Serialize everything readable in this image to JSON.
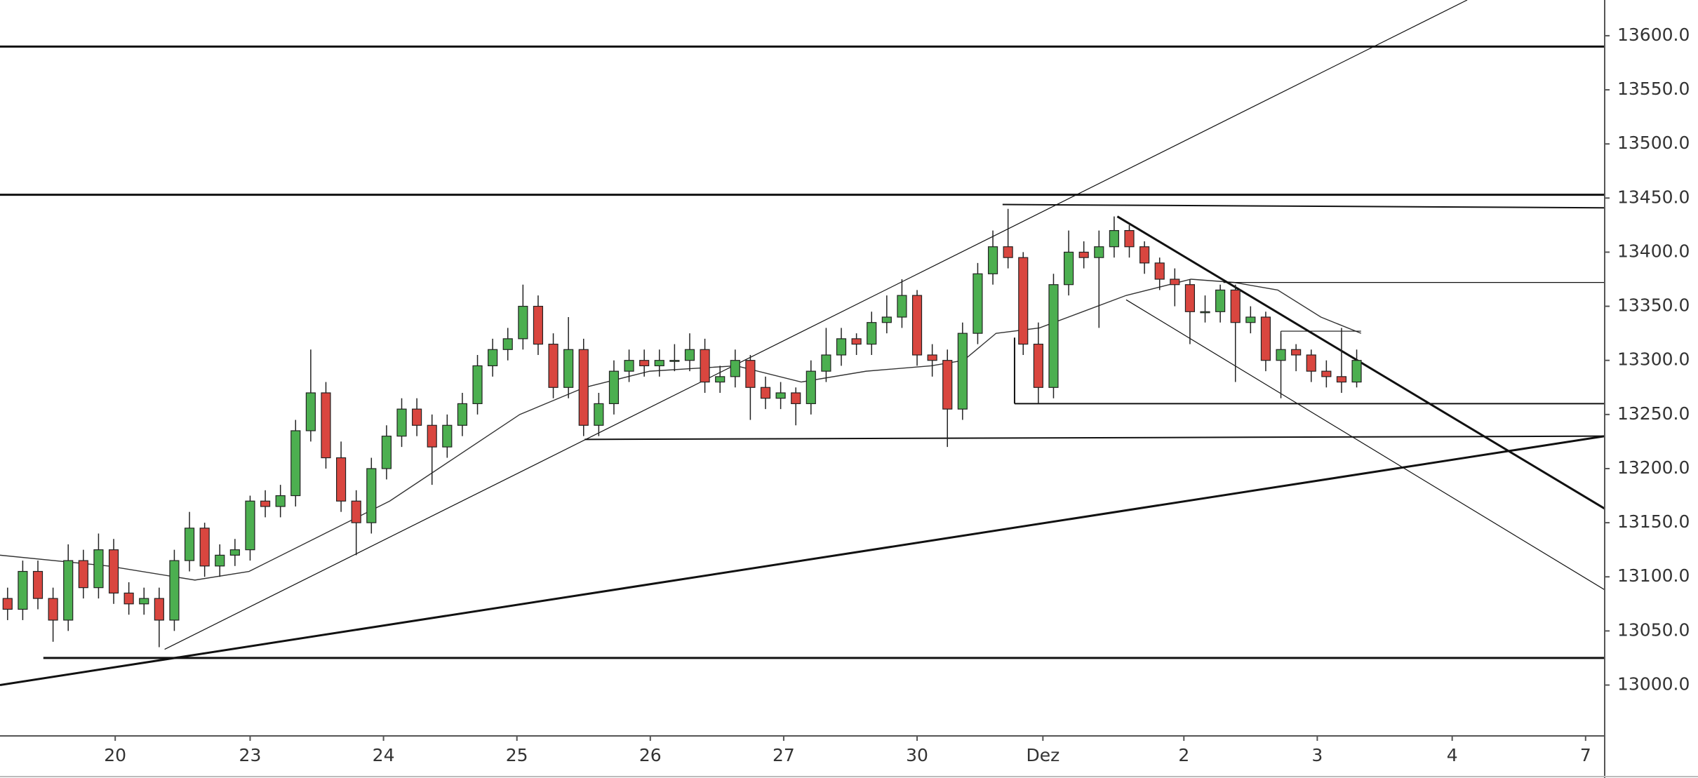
{
  "chart_data": {
    "type": "candlestick",
    "x": [
      0.5,
      1.5,
      2.5,
      3.5,
      4.5,
      5.5,
      6.5,
      7.5,
      8.5,
      9.5,
      10.5,
      11.5,
      12.5,
      13.5,
      14.5,
      15.5,
      16.5,
      17.5,
      18.5,
      19.5,
      20.5,
      21.5,
      22.5,
      23.5,
      24.5,
      25.5,
      26.5,
      27.5,
      28.5,
      29.5,
      30.5,
      31.5,
      32.5,
      33.5,
      34.5,
      35.5,
      36.5,
      37.5,
      38.5,
      39.5,
      40.5,
      41.5,
      42.5,
      43.5,
      44.5,
      45.5,
      46.5,
      47.5,
      48.5,
      49.5,
      50.5,
      51.5,
      52.5,
      53.5,
      54.5,
      55.5,
      56.5,
      57.5,
      58.5,
      59.5,
      60.5,
      61.5,
      62.5,
      63.5,
      64.5,
      65.5,
      66.5,
      67.5,
      68.5,
      69.5,
      70.5,
      71.5,
      72.5,
      73.5,
      74.5,
      75.5,
      76.5,
      77.5,
      78.5,
      79.5,
      80.5,
      81.5,
      82.5,
      83.5,
      84.5,
      85.5,
      86.5,
      87.5,
      88.5,
      89.5
    ],
    "open": [
      13080,
      13070,
      13105,
      13080,
      13060,
      13115,
      13090,
      13125,
      13085,
      13075,
      13080,
      13060,
      13115,
      13145,
      13110,
      13120,
      13125,
      13170,
      13165,
      13175,
      13235,
      13270,
      13210,
      13170,
      13150,
      13200,
      13230,
      13255,
      13240,
      13220,
      13240,
      13260,
      13295,
      13310,
      13320,
      13350,
      13315,
      13275,
      13310,
      13240,
      13260,
      13290,
      13300,
      13295,
      13300,
      13300,
      13310,
      13280,
      13285,
      13300,
      13275,
      13265,
      13270,
      13260,
      13290,
      13305,
      13320,
      13315,
      13335,
      13340,
      13360,
      13305,
      13300,
      13255,
      13325,
      13380,
      13405,
      13395,
      13315,
      13275,
      13370,
      13400,
      13395,
      13405,
      13420,
      13405,
      13390,
      13375,
      13370,
      13345,
      13345,
      13365,
      13335,
      13340,
      13300,
      13310,
      13305,
      13290,
      13285,
      13280
    ],
    "high": [
      13090,
      13115,
      13115,
      13090,
      13130,
      13125,
      13140,
      13135,
      13095,
      13090,
      13090,
      13125,
      13160,
      13150,
      13130,
      13135,
      13175,
      13180,
      13185,
      13245,
      13310,
      13280,
      13225,
      13180,
      13210,
      13240,
      13265,
      13265,
      13250,
      13250,
      13270,
      13305,
      13320,
      13330,
      13370,
      13360,
      13325,
      13340,
      13320,
      13270,
      13300,
      13310,
      13310,
      13310,
      13315,
      13325,
      13320,
      13295,
      13310,
      13305,
      13285,
      13280,
      13275,
      13300,
      13330,
      13330,
      13325,
      13345,
      13360,
      13375,
      13365,
      13315,
      13310,
      13335,
      13390,
      13420,
      13440,
      13400,
      13335,
      13380,
      13420,
      13410,
      13420,
      13433,
      13425,
      13410,
      13395,
      13385,
      13375,
      13360,
      13370,
      13370,
      13350,
      13345,
      13325,
      13315,
      13310,
      13300,
      13330,
      13310
    ],
    "low": [
      13060,
      13060,
      13070,
      13040,
      13050,
      13080,
      13080,
      13075,
      13065,
      13065,
      13035,
      13050,
      13105,
      13100,
      13100,
      13110,
      13115,
      13155,
      13155,
      13165,
      13225,
      13200,
      13160,
      13120,
      13140,
      13190,
      13220,
      13230,
      13185,
      13210,
      13230,
      13250,
      13285,
      13300,
      13310,
      13305,
      13265,
      13265,
      13230,
      13230,
      13250,
      13280,
      13285,
      13285,
      13290,
      13290,
      13270,
      13270,
      13275,
      13245,
      13255,
      13255,
      13240,
      13250,
      13280,
      13295,
      13305,
      13305,
      13325,
      13330,
      13295,
      13285,
      13220,
      13245,
      13315,
      13370,
      13385,
      13305,
      13260,
      13265,
      13360,
      13385,
      13330,
      13395,
      13395,
      13380,
      13365,
      13350,
      13315,
      13335,
      13335,
      13280,
      13325,
      13290,
      13265,
      13290,
      13280,
      13275,
      13270,
      13275
    ],
    "close": [
      13070,
      13105,
      13080,
      13060,
      13115,
      13090,
      13125,
      13085,
      13075,
      13080,
      13060,
      13115,
      13145,
      13110,
      13120,
      13125,
      13170,
      13165,
      13175,
      13235,
      13270,
      13210,
      13170,
      13150,
      13200,
      13230,
      13255,
      13240,
      13220,
      13240,
      13260,
      13295,
      13310,
      13320,
      13350,
      13315,
      13275,
      13310,
      13240,
      13260,
      13290,
      13300,
      13295,
      13300,
      13300,
      13310,
      13280,
      13285,
      13300,
      13275,
      13265,
      13270,
      13260,
      13290,
      13305,
      13320,
      13315,
      13335,
      13340,
      13360,
      13305,
      13300,
      13255,
      13325,
      13380,
      13405,
      13395,
      13315,
      13275,
      13370,
      13400,
      13395,
      13405,
      13420,
      13405,
      13390,
      13375,
      13370,
      13345,
      13345,
      13365,
      13335,
      13340,
      13300,
      13310,
      13305,
      13290,
      13285,
      13280,
      13300
    ],
    "up_color": "#4caf50",
    "down_color": "#d9463f",
    "moving_average": {
      "color": "#333333",
      "x": [
        0,
        7.14,
        12.86,
        16.43,
        21.43,
        25.71,
        30,
        34.29,
        38.57,
        42.86,
        48.57,
        52.86,
        57.14,
        61.43,
        63.57,
        65.71,
        68.57,
        71.43,
        74.29,
        77.14,
        78.57,
        81.43,
        84.29,
        87.14,
        89.79
      ],
      "values": [
        13120,
        13110,
        13097,
        13105,
        13140,
        13170,
        13210,
        13250,
        13275,
        13290,
        13295,
        13280,
        13290,
        13295,
        13300,
        13325,
        13330,
        13345,
        13360,
        13370,
        13375,
        13372,
        13365,
        13340,
        13325
      ]
    },
    "drawings": [
      {
        "x": [
          0,
          105.86
        ],
        "y": [
          13590,
          13590
        ],
        "style": "thick"
      },
      {
        "x": [
          0,
          105.86
        ],
        "y": [
          13453,
          13453
        ],
        "style": "thick"
      },
      {
        "x": [
          2.86,
          105.86
        ],
        "y": [
          13025,
          13025
        ],
        "style": "thick"
      },
      {
        "x": [
          66.14,
          105.86
        ],
        "y": [
          13444,
          13441
        ],
        "style": "thin"
      },
      {
        "x": [
          38.57,
          105.86
        ],
        "y": [
          13227,
          13230
        ],
        "style": "thin"
      },
      {
        "x": [
          66.93,
          105.86
        ],
        "y": [
          13260,
          13260
        ],
        "style": "thin"
      },
      {
        "x": [
          66.93,
          66.93
        ],
        "y": [
          13321,
          13260
        ],
        "style": "thin"
      },
      {
        "x": [
          80.71,
          105.86
        ],
        "y": [
          13372,
          13372
        ],
        "style": "hair"
      },
      {
        "x": [
          84.5,
          89.79
        ],
        "y": [
          13327,
          13327
        ],
        "style": "hair"
      },
      {
        "x": [
          84.5,
          84.5
        ],
        "y": [
          13327,
          13310
        ],
        "style": "hair"
      },
      {
        "x": [
          0,
          105.86
        ],
        "y": [
          13000,
          13230
        ],
        "style": "thick"
      },
      {
        "x": [
          10.86,
          96.79
        ],
        "y": [
          13033,
          13633
        ],
        "style": "hair"
      },
      {
        "x": [
          73.71,
          105.86
        ],
        "y": [
          13433,
          13163
        ],
        "style": "thick"
      },
      {
        "x": [
          74.29,
          105.86
        ],
        "y": [
          13356,
          13088
        ],
        "style": "hair"
      }
    ],
    "xlim": [
      0,
      105.86
    ],
    "ylim": [
      12953,
      13633
    ],
    "xticks": [
      {
        "value": 7.6,
        "label": "20"
      },
      {
        "value": 16.5,
        "label": "23"
      },
      {
        "value": 25.3,
        "label": "24"
      },
      {
        "value": 34.1,
        "label": "25"
      },
      {
        "value": 42.9,
        "label": "26"
      },
      {
        "value": 51.7,
        "label": "27"
      },
      {
        "value": 60.5,
        "label": "30"
      },
      {
        "value": 68.8,
        "label": "Dez"
      },
      {
        "value": 78.1,
        "label": "2"
      },
      {
        "value": 86.9,
        "label": "3"
      },
      {
        "value": 95.8,
        "label": "4"
      },
      {
        "value": 104.6,
        "label": "7"
      }
    ],
    "yticks": [
      {
        "value": 13000,
        "label": "13000.0"
      },
      {
        "value": 13050,
        "label": "13050.0"
      },
      {
        "value": 13100,
        "label": "13100.0"
      },
      {
        "value": 13150,
        "label": "13150.0"
      },
      {
        "value": 13200,
        "label": "13200.0"
      },
      {
        "value": 13250,
        "label": "13250.0"
      },
      {
        "value": 13300,
        "label": "13300.0"
      },
      {
        "value": 13350,
        "label": "13350.0"
      },
      {
        "value": 13400,
        "label": "13400.0"
      },
      {
        "value": 13450,
        "label": "13450.0"
      },
      {
        "value": 13500,
        "label": "13500.0"
      },
      {
        "value": 13550,
        "label": "13550.0"
      },
      {
        "value": 13600,
        "label": "13600.0"
      }
    ]
  }
}
